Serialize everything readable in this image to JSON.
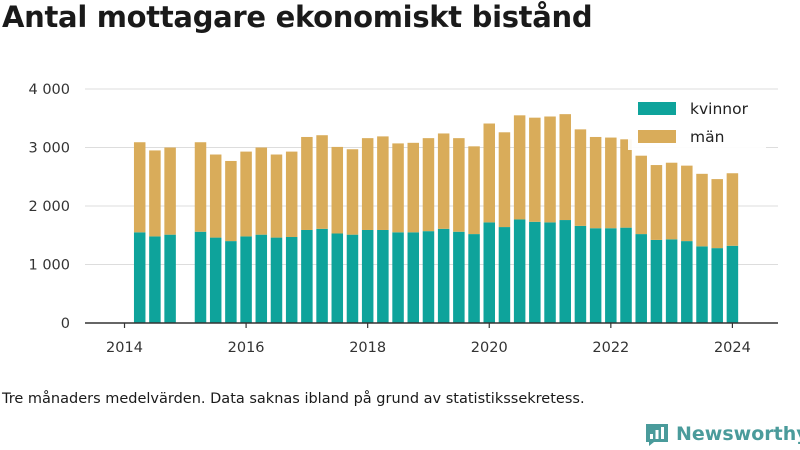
{
  "header": {
    "title": "Antal mottagare ekonomiskt bistånd"
  },
  "footnote": "Tre månaders medelvärden. Data saknas ibland på grund av statistikssekretess.",
  "brand": {
    "name": "Newsworthy",
    "icon": "bar-chart-logo-icon"
  },
  "colors": {
    "kvinnor": "#0ea39b",
    "man": "#d9ac5a",
    "axis": "#333333",
    "grid": "#dddddd",
    "brand": "#4a9b9b"
  },
  "chart_data": {
    "type": "bar",
    "stacked": true,
    "x": [
      2014.25,
      2014.5,
      2014.75,
      2015.25,
      2015.5,
      2015.75,
      2016.0,
      2016.25,
      2016.5,
      2016.75,
      2017.0,
      2017.25,
      2017.5,
      2017.75,
      2018.0,
      2018.25,
      2018.5,
      2018.75,
      2019.0,
      2019.25,
      2019.5,
      2019.75,
      2020.0,
      2020.25,
      2020.5,
      2020.75,
      2021.0,
      2021.25,
      2021.5,
      2021.75,
      2022.0,
      2022.25,
      2022.5,
      2022.75,
      2023.0,
      2023.25,
      2023.5,
      2023.75,
      2024.0
    ],
    "series": [
      {
        "name": "kvinnor",
        "values": [
          1550,
          1480,
          1510,
          1560,
          1460,
          1400,
          1480,
          1510,
          1460,
          1470,
          1590,
          1610,
          1530,
          1510,
          1590,
          1590,
          1550,
          1550,
          1570,
          1610,
          1560,
          1520,
          1720,
          1640,
          1770,
          1730,
          1720,
          1760,
          1660,
          1620,
          1620,
          1630,
          1520,
          1420,
          1430,
          1400,
          1310,
          1280,
          1320
        ]
      },
      {
        "name": "män",
        "values": [
          1540,
          1470,
          1490,
          1530,
          1420,
          1370,
          1450,
          1490,
          1420,
          1460,
          1590,
          1600,
          1480,
          1460,
          1570,
          1600,
          1520,
          1530,
          1590,
          1630,
          1600,
          1500,
          1690,
          1620,
          1780,
          1780,
          1810,
          1810,
          1650,
          1560,
          1550,
          1510,
          1340,
          1280,
          1310,
          1290,
          1240,
          1180,
          1240
        ]
      }
    ],
    "xlim": [
      2013.35,
      2024.75
    ],
    "ylim": [
      0,
      4000
    ],
    "xticks": [
      2014,
      2016,
      2018,
      2020,
      2022,
      2024
    ],
    "xtick_labels": [
      "2014",
      "2016",
      "2018",
      "2020",
      "2022",
      "2024"
    ],
    "yticks": [
      0,
      1000,
      2000,
      3000,
      4000
    ],
    "ytick_labels": [
      "0",
      "1 000",
      "2 000",
      "3 000",
      "4 000"
    ],
    "grid": "horizontal",
    "legend": {
      "position": "top-right",
      "entries": [
        "kvinnor",
        "män"
      ]
    }
  }
}
